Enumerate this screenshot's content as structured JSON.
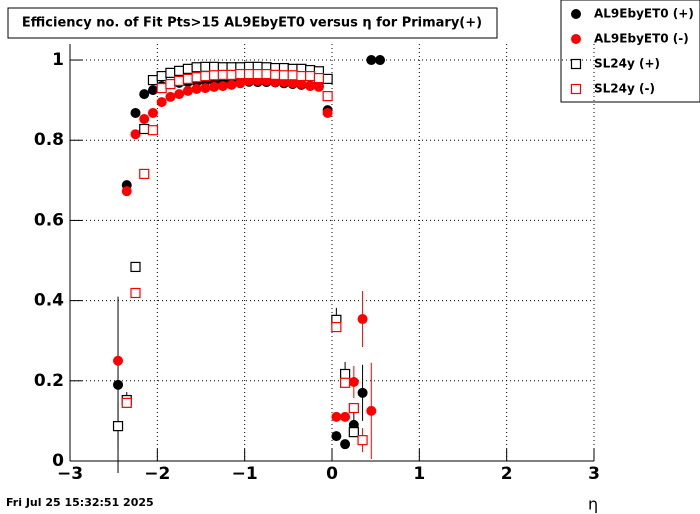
{
  "chart_data": {
    "type": "scatter",
    "title": "Efficiency no. of Fit Pts>15 AL9EbyET0 versus η for Primary(+)",
    "x_label": "η",
    "timestamp": "Fri Jul 25 15:32:51 2025",
    "x": [
      -2.45,
      -2.35,
      -2.25,
      -2.15,
      -2.05,
      -1.95,
      -1.85,
      -1.75,
      -1.65,
      -1.55,
      -1.45,
      -1.35,
      -1.25,
      -1.15,
      -1.05,
      -0.95,
      -0.85,
      -0.75,
      -0.65,
      -0.55,
      -0.45,
      -0.35,
      -0.25,
      -0.15,
      -0.05,
      0.05,
      0.15,
      0.25,
      0.35,
      0.45,
      0.55
    ],
    "series": [
      {
        "name": "AL9EbyET0 (+)",
        "color": "#000000",
        "marker": "circle",
        "filled": true,
        "values": [
          0.19,
          0.688,
          0.868,
          0.915,
          0.925,
          0.935,
          0.94,
          0.943,
          0.945,
          0.945,
          0.947,
          0.947,
          0.947,
          0.947,
          0.947,
          0.946,
          0.945,
          0.945,
          0.944,
          0.942,
          0.94,
          0.938,
          0.936,
          0.935,
          0.875,
          0.062,
          0.042,
          0.09,
          0.17,
          1,
          1
        ],
        "errors": [
          0.22,
          null,
          null,
          null,
          null,
          null,
          null,
          null,
          null,
          null,
          null,
          null,
          null,
          null,
          null,
          null,
          null,
          null,
          null,
          null,
          null,
          null,
          null,
          null,
          null,
          null,
          null,
          0.03,
          0.07,
          null,
          null
        ]
      },
      {
        "name": "AL9EbyET0 (-)",
        "color": "#ff0000",
        "marker": "circle",
        "filled": true,
        "values": [
          0.25,
          0.673,
          0.815,
          0.853,
          0.868,
          0.895,
          0.908,
          0.915,
          0.923,
          0.928,
          0.93,
          0.933,
          0.935,
          0.938,
          0.942,
          0.948,
          0.948,
          0.948,
          0.945,
          0.945,
          0.942,
          0.94,
          0.935,
          0.933,
          0.868,
          0.11,
          0.11,
          0.197,
          0.354,
          0.125,
          null
        ],
        "errors": [
          null,
          null,
          null,
          null,
          null,
          null,
          null,
          null,
          null,
          null,
          null,
          null,
          null,
          null,
          null,
          null,
          null,
          null,
          null,
          null,
          null,
          null,
          null,
          null,
          null,
          null,
          null,
          0.04,
          0.07,
          0.12,
          null
        ]
      },
      {
        "name": "SL24y (+)",
        "color": "#000000",
        "marker": "square",
        "filled": false,
        "values": [
          0.087,
          0.152,
          0.484,
          0.828,
          0.95,
          0.96,
          0.968,
          0.973,
          0.978,
          0.982,
          0.983,
          0.983,
          0.982,
          0.982,
          0.982,
          0.983,
          0.983,
          0.982,
          0.98,
          0.98,
          0.978,
          0.978,
          0.975,
          0.972,
          0.953,
          0.352,
          0.217,
          0.072,
          null,
          null,
          null
        ],
        "errors": [
          0.06,
          0.02,
          null,
          null,
          null,
          null,
          null,
          null,
          null,
          null,
          null,
          null,
          null,
          null,
          null,
          null,
          null,
          null,
          null,
          null,
          null,
          null,
          null,
          null,
          null,
          0.03,
          0.03,
          null,
          null,
          null,
          null
        ]
      },
      {
        "name": "SL24y (-)",
        "color": "#ff0000",
        "marker": "square",
        "filled": false,
        "values": [
          null,
          0.145,
          0.419,
          0.716,
          0.825,
          0.93,
          0.94,
          0.948,
          0.953,
          0.957,
          0.96,
          0.962,
          0.963,
          0.963,
          0.965,
          0.965,
          0.965,
          0.965,
          0.963,
          0.962,
          0.962,
          0.96,
          0.96,
          0.955,
          0.91,
          0.334,
          0.195,
          0.132,
          0.052,
          null,
          null
        ],
        "errors": [
          null,
          null,
          null,
          null,
          null,
          null,
          null,
          null,
          null,
          null,
          null,
          null,
          null,
          null,
          null,
          null,
          null,
          null,
          null,
          null,
          null,
          null,
          null,
          null,
          null,
          null,
          null,
          null,
          0.03,
          null,
          null
        ]
      }
    ],
    "xlim": [
      -3,
      3
    ],
    "xticks": [
      {
        "value": -3,
        "label": "−3"
      },
      {
        "value": -2,
        "label": "−2"
      },
      {
        "value": -1,
        "label": "−1"
      },
      0,
      1,
      2,
      3
    ],
    "ylim": [
      0,
      1.04
    ],
    "yticks": [
      0,
      0.2,
      0.4,
      0.6,
      0.8,
      1
    ],
    "grid": true
  }
}
